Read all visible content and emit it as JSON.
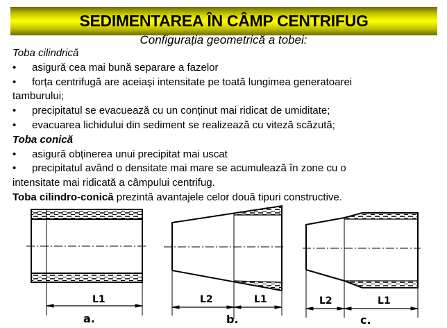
{
  "title": "SEDIMENTAREA ÎN CÂMP CENTRIFUG",
  "subtitle": "Configurația geometrică a tobei:",
  "bullet_glyph": "•",
  "sections": [
    {
      "heading": "Toba cilindrică",
      "bullets": [
        "asigură cea mai bună separare a fazelor",
        "forța centrifugă are aceiaşi intensitate pe toată lungimea generatoarei",
        "precipitatul se evacuează cu un conținut mai ridicat de umiditate;",
        "evacuarea lichidului din sediment se realizează cu viteză scăzută;"
      ],
      "continuation": "tamburului;"
    },
    {
      "heading": "Toba conică",
      "bullets": [
        "asigură obținerea unui precipitat mai uscat",
        "precipitatul având o densitate mai mare se acumulează în zone cu o"
      ],
      "continuation": "intensitate mai ridicată a câmpului centrifug."
    }
  ],
  "conclusion": {
    "heading": "Toba cilindro-conică",
    "text": " prezintă avantajele celor două tipuri constructive."
  },
  "figure": {
    "labels": {
      "L1": "L1",
      "L2": "L2",
      "a": "a.",
      "b": "b.",
      "c": "c."
    },
    "line_color": "#000000"
  }
}
